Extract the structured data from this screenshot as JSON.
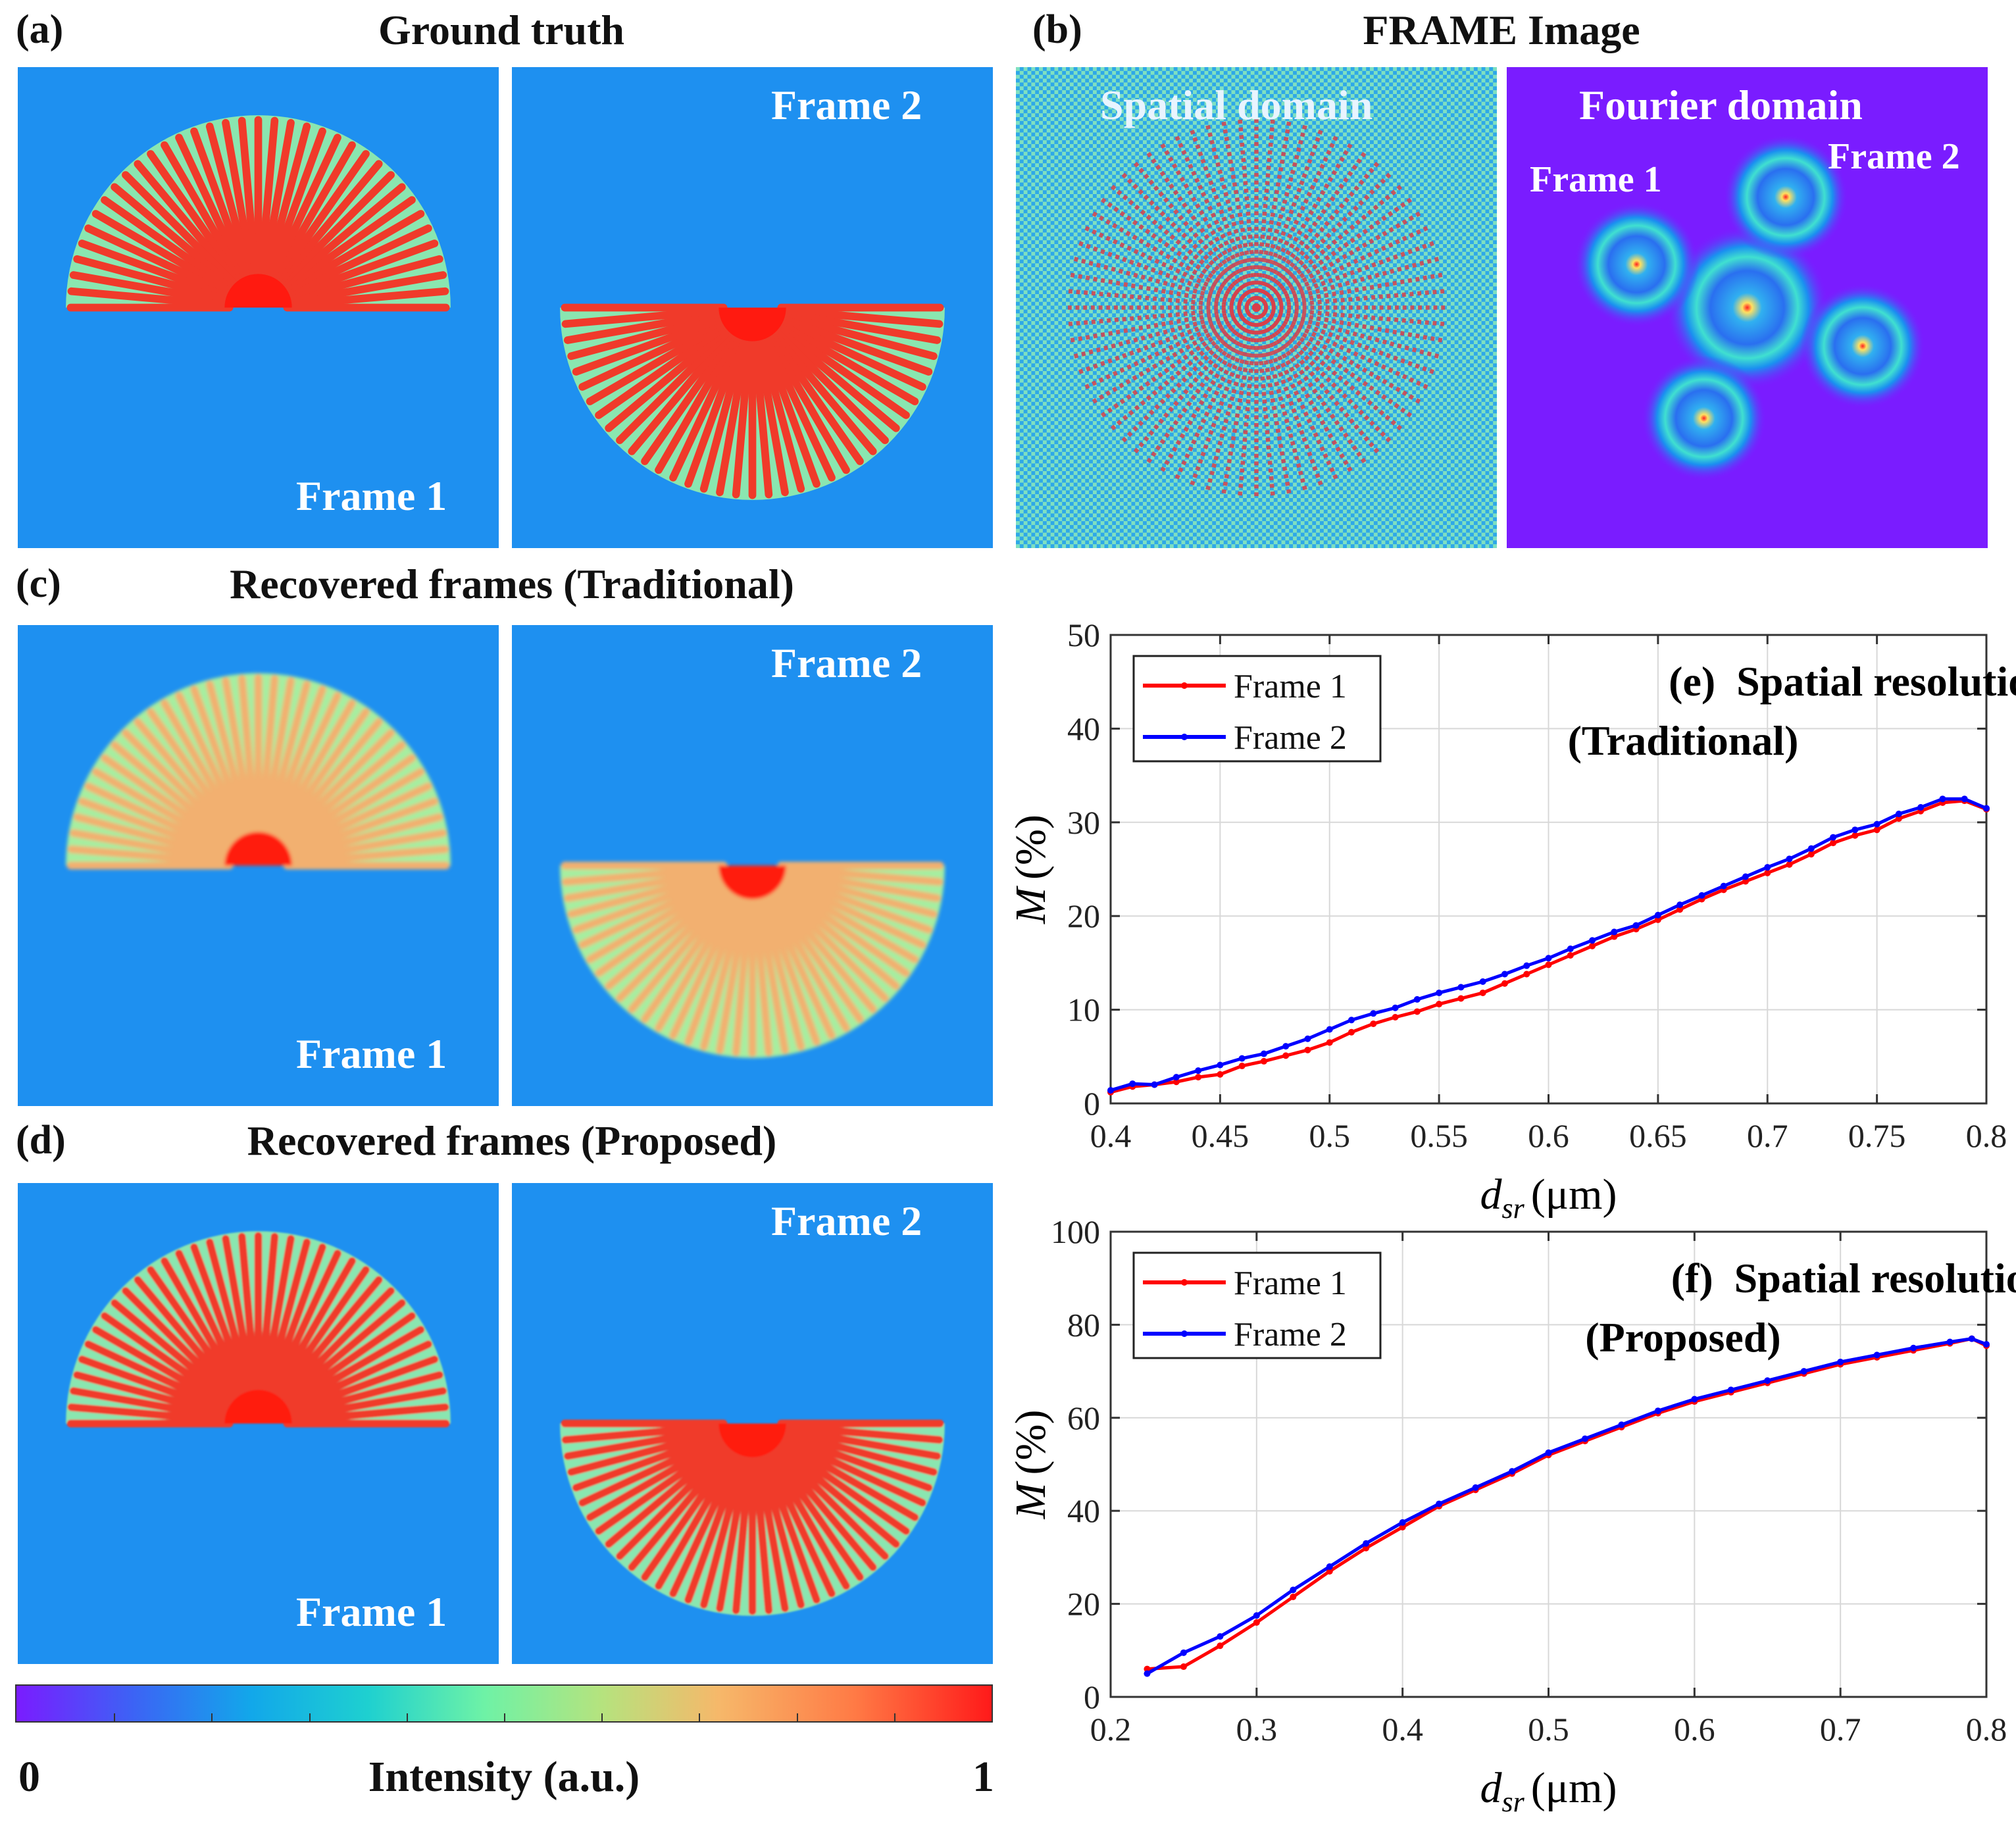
{
  "panels": {
    "a": {
      "label": "(a)",
      "title": "Ground truth",
      "frame1": "Frame 1",
      "frame2": "Frame 2"
    },
    "b": {
      "label": "(b)",
      "title": "FRAME Image",
      "spatial": "Spatial domain",
      "fourier": "Fourier domain",
      "frame1": "Frame 1",
      "frame2": "Frame 2"
    },
    "c": {
      "label": "(c)",
      "title": "Recovered frames (Traditional)",
      "frame1": "Frame 1",
      "frame2": "Frame 2"
    },
    "d": {
      "label": "(d)",
      "title": "Recovered frames (Proposed)",
      "frame1": "Frame 1",
      "frame2": "Frame 2"
    }
  },
  "colorbar": {
    "min": "0",
    "max": "1",
    "label": "Intensity (a.u.)"
  },
  "colors": {
    "frame1": "#ff0000",
    "frame2": "#0000ff",
    "background": "#1e90f0"
  },
  "chart_data": [
    {
      "type": "line",
      "title": "(e)  Spatial resolution",
      "subtitle": "(Traditional)",
      "xlabel": "d_sr (μm)",
      "xlabel_main": "d",
      "xlabel_sub": "sr",
      "xlabel_unit": "(μm)",
      "ylabel": "M (%)",
      "ylabel_main": "M",
      "ylabel_unit": "(%)",
      "xlim": [
        0.4,
        0.8
      ],
      "ylim": [
        0,
        50
      ],
      "xticks": [
        "0.4",
        "0.45",
        "0.5",
        "0.55",
        "0.6",
        "0.65",
        "0.7",
        "0.75",
        "0.8"
      ],
      "yticks": [
        "0",
        "10",
        "20",
        "30",
        "40",
        "50"
      ],
      "grid": true,
      "legend": "top-left",
      "x": [
        0.4,
        0.41,
        0.42,
        0.43,
        0.44,
        0.45,
        0.46,
        0.47,
        0.48,
        0.49,
        0.5,
        0.51,
        0.52,
        0.53,
        0.54,
        0.55,
        0.56,
        0.57,
        0.58,
        0.59,
        0.6,
        0.61,
        0.62,
        0.63,
        0.64,
        0.65,
        0.66,
        0.67,
        0.68,
        0.69,
        0.7,
        0.71,
        0.72,
        0.73,
        0.74,
        0.75,
        0.76,
        0.77,
        0.78,
        0.79,
        0.8
      ],
      "series": [
        {
          "name": "Frame 1",
          "values": [
            1.2,
            1.8,
            2.0,
            2.3,
            2.8,
            3.1,
            4.0,
            4.5,
            5.1,
            5.7,
            6.5,
            7.6,
            8.5,
            9.2,
            9.8,
            10.6,
            11.2,
            11.8,
            12.8,
            13.8,
            14.8,
            15.8,
            16.8,
            17.8,
            18.6,
            19.6,
            20.7,
            21.8,
            22.8,
            23.7,
            24.6,
            25.5,
            26.6,
            27.8,
            28.6,
            29.2,
            30.4,
            31.2,
            32.1,
            32.3,
            31.4
          ]
        },
        {
          "name": "Frame 2",
          "values": [
            1.4,
            2.1,
            2.0,
            2.8,
            3.5,
            4.1,
            4.8,
            5.3,
            6.1,
            6.9,
            7.9,
            8.9,
            9.6,
            10.2,
            11.1,
            11.8,
            12.4,
            13.0,
            13.8,
            14.7,
            15.5,
            16.5,
            17.4,
            18.3,
            19.0,
            20.1,
            21.2,
            22.2,
            23.2,
            24.2,
            25.2,
            26.1,
            27.2,
            28.4,
            29.2,
            29.8,
            30.9,
            31.6,
            32.5,
            32.5,
            31.5
          ]
        }
      ]
    },
    {
      "type": "line",
      "title": "(f)  Spatial resolution",
      "subtitle": "(Proposed)",
      "xlabel": "d_sr (μm)",
      "xlabel_main": "d",
      "xlabel_sub": "sr",
      "xlabel_unit": "(μm)",
      "ylabel": "M (%)",
      "ylabel_main": "M",
      "ylabel_unit": "(%)",
      "xlim": [
        0.2,
        0.8
      ],
      "ylim": [
        0,
        100
      ],
      "xticks": [
        "0.2",
        "0.3",
        "0.4",
        "0.5",
        "0.6",
        "0.7",
        "0.8"
      ],
      "yticks": [
        "0",
        "20",
        "40",
        "60",
        "80",
        "100"
      ],
      "grid": true,
      "legend": "top-left",
      "x": [
        0.225,
        0.25,
        0.275,
        0.3,
        0.325,
        0.35,
        0.375,
        0.4,
        0.425,
        0.45,
        0.475,
        0.5,
        0.525,
        0.55,
        0.575,
        0.6,
        0.625,
        0.65,
        0.675,
        0.7,
        0.725,
        0.75,
        0.775,
        0.79,
        0.8
      ],
      "series": [
        {
          "name": "Frame 1",
          "values": [
            6,
            6.5,
            11,
            16,
            21.5,
            27,
            32,
            36.5,
            41,
            44.5,
            48,
            52,
            55,
            58,
            61,
            63.5,
            65.5,
            67.5,
            69.5,
            71.5,
            73,
            74.5,
            76,
            77,
            75.5
          ]
        },
        {
          "name": "Frame 2",
          "values": [
            5,
            9.5,
            13,
            17.5,
            23,
            28,
            33,
            37.5,
            41.5,
            45,
            48.5,
            52.5,
            55.5,
            58.5,
            61.5,
            64,
            66,
            68,
            70,
            72,
            73.5,
            75,
            76.3,
            77,
            75.8
          ]
        }
      ]
    }
  ]
}
